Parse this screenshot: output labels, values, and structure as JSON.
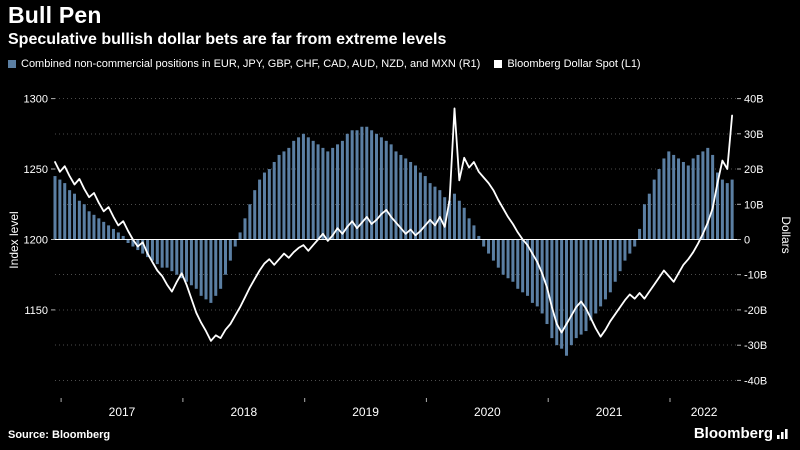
{
  "header": {
    "title": "Bull Pen",
    "subtitle": "Speculative bullish dollar bets are far from extreme levels"
  },
  "legend": [
    {
      "label": "Combined non-commercial positions in EUR, JPY, GBP, CHF, CAD, AUD, NZD, and MXN (R1)",
      "swatch_color": "#5b7fa3",
      "type": "bar"
    },
    {
      "label": "Bloomberg Dollar Spot (L1)",
      "swatch_color": "#ffffff",
      "type": "line"
    }
  ],
  "footer": {
    "source": "Source: Bloomberg",
    "logo_text": "Bloomberg"
  },
  "chart_data": {
    "type": "bar+line combo",
    "title": "Bull Pen",
    "subtitle": "Speculative bullish dollar bets are far from extreme levels",
    "background_color": "#000000",
    "grid_color": "#4d4d4d",
    "grid": "dotted horizontal lines at every 10B, solid white zero line",
    "x_domain": [
      2016.95,
      2022.55
    ],
    "x_start_year": 2016.95,
    "x_step_years": 0.04,
    "x_axis": {
      "ticks": [
        2017,
        2018,
        2019,
        2020,
        2021,
        2022
      ],
      "labels": [
        "2017",
        "2018",
        "2019",
        "2020",
        "2021",
        "2022"
      ],
      "label_x": [
        2017.5,
        2018.5,
        2019.5,
        2020.5,
        2021.5,
        2022.28
      ]
    },
    "left_axis": {
      "title": "Index level",
      "ticks": [
        1300,
        1250,
        1200,
        1150
      ],
      "tick_labels": [
        "1300",
        "1250",
        "1200",
        "1150"
      ],
      "range": [
        1087.5,
        1307.5
      ]
    },
    "right_axis": {
      "title": "Dollars",
      "ticks": [
        40,
        30,
        20,
        10,
        0,
        -10,
        -20,
        -30,
        -40
      ],
      "tick_labels": [
        "40B",
        "30B",
        "20B",
        "10B",
        "0",
        "-10B",
        "-20B",
        "-30B",
        "-40B"
      ],
      "range": [
        -45,
        43
      ]
    },
    "series": [
      {
        "name": "Combined non-commercial positions in EUR, JPY, GBP, CHF, CAD, AUD, NZD, and MXN (R1)",
        "type": "bar",
        "axis": "right",
        "unit": "billions of dollars",
        "color": "#5b7fa3",
        "values": [
          18,
          17,
          16,
          14,
          13,
          11,
          10,
          8,
          7,
          6,
          5,
          4,
          3,
          2,
          1,
          -1,
          -2,
          -3,
          -4,
          -5,
          -6,
          -7,
          -8,
          -8,
          -9,
          -10,
          -11,
          -12,
          -13,
          -14,
          -16,
          -17,
          -18,
          -16,
          -14,
          -10,
          -6,
          -2,
          2,
          6,
          10,
          14,
          17,
          19,
          20,
          22,
          24,
          25,
          26,
          28,
          29,
          30,
          29,
          28,
          27,
          26,
          25,
          26,
          27,
          28,
          30,
          31,
          31,
          32,
          32,
          31,
          30,
          29,
          28,
          27,
          25,
          24,
          23,
          22,
          21,
          19,
          18,
          16,
          15,
          14,
          12,
          11,
          13,
          11,
          9,
          6,
          4,
          1,
          -2,
          -4,
          -6,
          -8,
          -10,
          -11,
          -12,
          -14,
          -15,
          -16,
          -18,
          -19,
          -21,
          -24,
          -28,
          -30,
          -31,
          -33,
          -30,
          -28,
          -27,
          -26,
          -23,
          -21,
          -19,
          -17,
          -15,
          -12,
          -9,
          -6,
          -4,
          -2,
          3,
          10,
          13,
          17,
          20,
          23,
          25,
          24,
          23,
          22,
          21,
          23,
          24,
          25,
          26,
          24,
          19,
          17,
          16,
          17
        ]
      },
      {
        "name": "Bloomberg Dollar Spot (L1)",
        "type": "line",
        "axis": "left",
        "unit": "index level",
        "color": "#ffffff",
        "values": [
          1255,
          1248,
          1252,
          1245,
          1239,
          1243,
          1236,
          1230,
          1233,
          1226,
          1220,
          1223,
          1216,
          1210,
          1213,
          1206,
          1200,
          1195,
          1198,
          1190,
          1184,
          1178,
          1174,
          1168,
          1163,
          1170,
          1176,
          1168,
          1158,
          1148,
          1141,
          1135,
          1128,
          1132,
          1130,
          1136,
          1140,
          1146,
          1152,
          1159,
          1166,
          1172,
          1178,
          1183,
          1186,
          1182,
          1186,
          1190,
          1187,
          1191,
          1194,
          1196,
          1192,
          1196,
          1200,
          1204,
          1199,
          1203,
          1208,
          1204,
          1209,
          1213,
          1208,
          1212,
          1216,
          1211,
          1214,
          1218,
          1221,
          1216,
          1212,
          1208,
          1204,
          1207,
          1203,
          1206,
          1210,
          1214,
          1210,
          1216,
          1209,
          1228,
          1293,
          1242,
          1258,
          1251,
          1255,
          1248,
          1244,
          1240,
          1235,
          1228,
          1222,
          1216,
          1211,
          1205,
          1200,
          1196,
          1190,
          1184,
          1176,
          1166,
          1152,
          1140,
          1134,
          1140,
          1146,
          1152,
          1156,
          1151,
          1144,
          1137,
          1131,
          1136,
          1142,
          1147,
          1152,
          1157,
          1161,
          1158,
          1162,
          1158,
          1163,
          1168,
          1173,
          1178,
          1174,
          1170,
          1176,
          1182,
          1186,
          1191,
          1197,
          1204,
          1212,
          1222,
          1240,
          1256,
          1250,
          1288
        ]
      }
    ]
  }
}
